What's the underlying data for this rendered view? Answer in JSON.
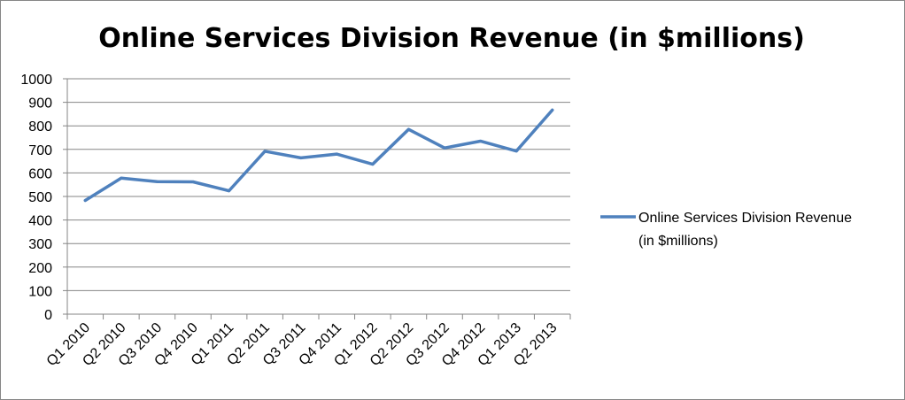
{
  "chart_data": {
    "type": "line",
    "title": "Online Services Division Revenue (in $millions)",
    "xlabel": "",
    "ylabel": "",
    "ylim": [
      0,
      1000
    ],
    "yticks": [
      0,
      100,
      200,
      300,
      400,
      500,
      600,
      700,
      800,
      900,
      1000
    ],
    "grid": true,
    "legend_position": "right",
    "categories": [
      "Q1 2010",
      "Q2 2010",
      "Q3 2010",
      "Q4 2010",
      "Q1 2011",
      "Q2 2011",
      "Q3 2011",
      "Q4 2011",
      "Q1 2012",
      "Q2 2012",
      "Q3 2012",
      "Q4 2012",
      "Q1 2013",
      "Q2 2013"
    ],
    "series": [
      {
        "name": "Online Services Division Revenue (in $millions)",
        "legend_lines": [
          "Online Services Division Revenue",
          "(in $millions)"
        ],
        "color": "#4f81bd",
        "values": [
          483,
          578,
          563,
          562,
          524,
          692,
          664,
          680,
          637,
          785,
          706,
          735,
          693,
          867
        ]
      }
    ]
  }
}
